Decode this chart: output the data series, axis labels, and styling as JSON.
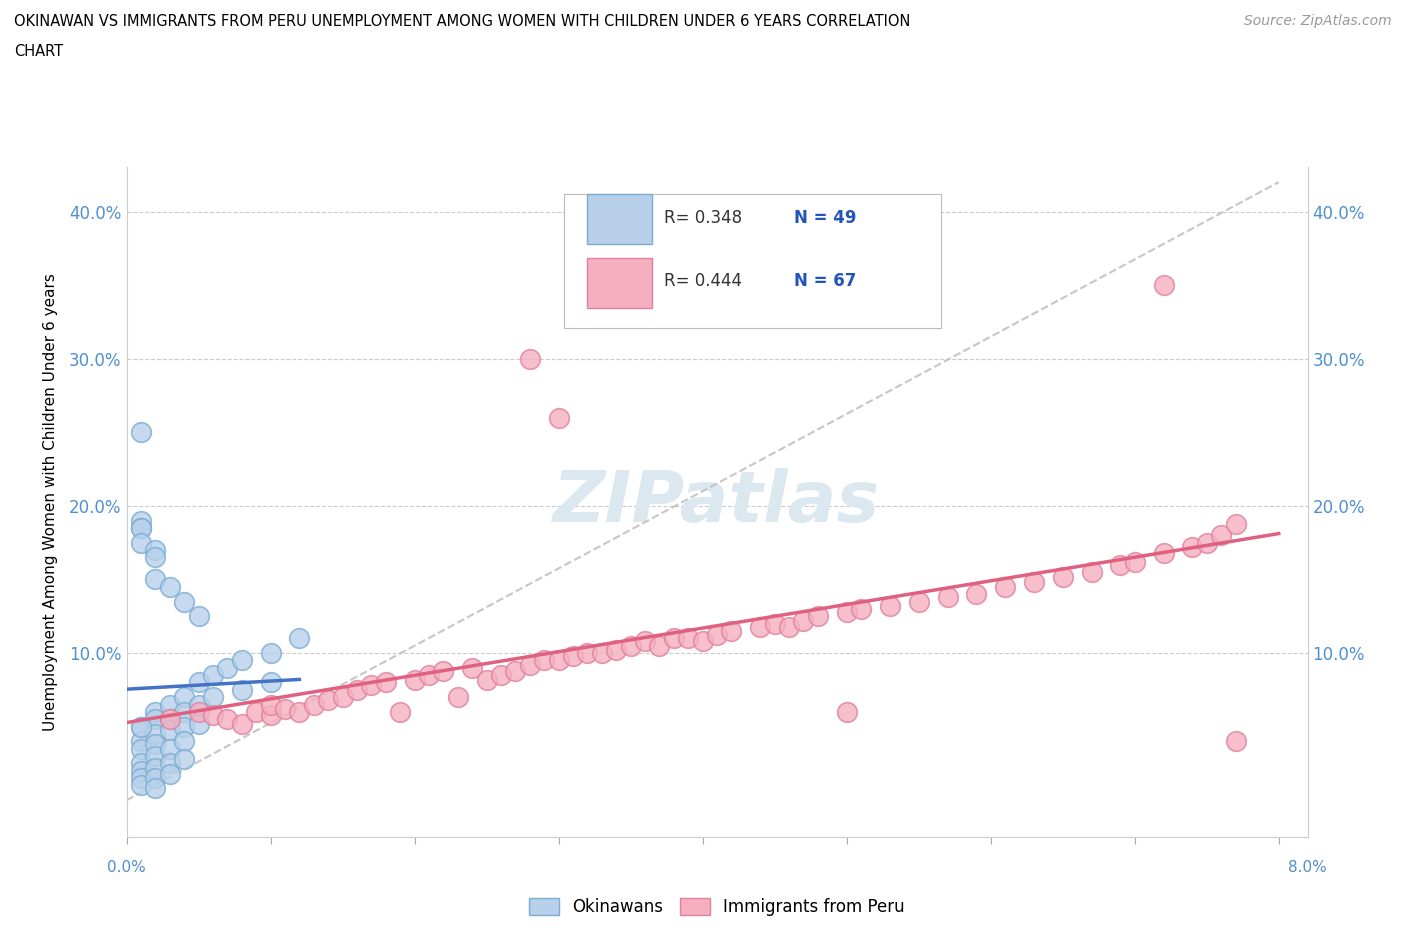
{
  "title_line1": "OKINAWAN VS IMMIGRANTS FROM PERU UNEMPLOYMENT AMONG WOMEN WITH CHILDREN UNDER 6 YEARS CORRELATION",
  "title_line2": "CHART",
  "source": "Source: ZipAtlas.com",
  "ylabel": "Unemployment Among Women with Children Under 6 years",
  "x_min": 0.0,
  "x_max": 0.08,
  "y_min": 0.0,
  "y_max": 0.42,
  "yticks": [
    0.0,
    0.1,
    0.2,
    0.3,
    0.4
  ],
  "ytick_labels": [
    "",
    "10.0%",
    "20.0%",
    "30.0%",
    "40.0%"
  ],
  "color_okinawan_fill": "#b8d0ea",
  "color_okinawan_edge": "#7aadd4",
  "color_peru_fill": "#f5b0c0",
  "color_peru_edge": "#e080a0",
  "color_okinawan_line": "#4472c4",
  "color_peru_line": "#e06080",
  "color_ref_line": "#c0c0c0",
  "watermark_color": "#dce8f0",
  "legend_r1": "R= 0.348",
  "legend_n1": "N = 49",
  "legend_r2": "R= 0.444",
  "legend_n2": "N = 67",
  "okinawan_x": [
    0.001,
    0.001,
    0.001,
    0.001,
    0.001,
    0.001,
    0.001,
    0.002,
    0.002,
    0.002,
    0.002,
    0.002,
    0.002,
    0.002,
    0.002,
    0.003,
    0.003,
    0.003,
    0.003,
    0.003,
    0.003,
    0.004,
    0.004,
    0.004,
    0.004,
    0.004,
    0.005,
    0.005,
    0.005,
    0.006,
    0.006,
    0.007,
    0.008,
    0.008,
    0.01,
    0.01,
    0.012,
    0.001,
    0.001,
    0.001,
    0.001,
    0.001,
    0.001,
    0.002,
    0.002,
    0.002,
    0.003,
    0.004,
    0.005
  ],
  "okinawan_y": [
    0.05,
    0.04,
    0.035,
    0.025,
    0.02,
    0.015,
    0.01,
    0.06,
    0.055,
    0.045,
    0.038,
    0.03,
    0.022,
    0.015,
    0.008,
    0.065,
    0.055,
    0.048,
    0.035,
    0.025,
    0.018,
    0.07,
    0.06,
    0.05,
    0.04,
    0.028,
    0.08,
    0.065,
    0.052,
    0.085,
    0.07,
    0.09,
    0.095,
    0.075,
    0.1,
    0.08,
    0.11,
    0.25,
    0.19,
    0.185,
    0.185,
    0.175,
    0.05,
    0.17,
    0.165,
    0.15,
    0.145,
    0.135,
    0.125
  ],
  "peru_x": [
    0.003,
    0.005,
    0.006,
    0.007,
    0.008,
    0.009,
    0.01,
    0.01,
    0.011,
    0.012,
    0.013,
    0.014,
    0.015,
    0.016,
    0.017,
    0.018,
    0.019,
    0.02,
    0.021,
    0.022,
    0.023,
    0.024,
    0.025,
    0.026,
    0.027,
    0.028,
    0.029,
    0.03,
    0.031,
    0.032,
    0.033,
    0.034,
    0.035,
    0.036,
    0.037,
    0.038,
    0.039,
    0.04,
    0.041,
    0.042,
    0.044,
    0.045,
    0.046,
    0.047,
    0.048,
    0.05,
    0.051,
    0.053,
    0.055,
    0.057,
    0.059,
    0.061,
    0.063,
    0.065,
    0.067,
    0.069,
    0.07,
    0.072,
    0.074,
    0.075,
    0.076,
    0.077,
    0.028,
    0.03,
    0.05,
    0.072,
    0.077
  ],
  "peru_y": [
    0.055,
    0.06,
    0.058,
    0.055,
    0.052,
    0.06,
    0.058,
    0.065,
    0.062,
    0.06,
    0.065,
    0.068,
    0.07,
    0.075,
    0.078,
    0.08,
    0.06,
    0.082,
    0.085,
    0.088,
    0.07,
    0.09,
    0.082,
    0.085,
    0.088,
    0.092,
    0.095,
    0.095,
    0.098,
    0.1,
    0.1,
    0.102,
    0.105,
    0.108,
    0.105,
    0.11,
    0.11,
    0.108,
    0.112,
    0.115,
    0.118,
    0.12,
    0.118,
    0.122,
    0.125,
    0.128,
    0.13,
    0.132,
    0.135,
    0.138,
    0.14,
    0.145,
    0.148,
    0.152,
    0.155,
    0.16,
    0.162,
    0.168,
    0.172,
    0.175,
    0.18,
    0.188,
    0.3,
    0.26,
    0.06,
    0.35,
    0.04
  ]
}
